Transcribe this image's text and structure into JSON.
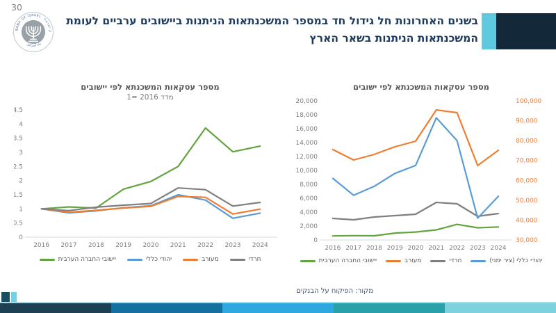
{
  "page": {
    "number": "30"
  },
  "logo": {
    "ring_text_en": "BANK OF ISRAEL",
    "ring_text_he": "בנק ישראל",
    "ring_text_ar": "بنك إسرائيل"
  },
  "header": {
    "title_lines": [
      "בשנים האחרונות חל גידול חד במספר המשכנתאות הניתנות ביישובים ערביים לעומת",
      "המשכנתאות הניתנות בשאר הארץ"
    ],
    "text_color": "#1c3a5e",
    "accent_cyan": "#5fc9df",
    "accent_navy": "#13293a"
  },
  "source_note": "מקור: הפיקוח על הבנקים",
  "footer": {
    "divider_color": "#a8d9e8",
    "corner_squares": [
      "#17505f",
      "#70d2e2"
    ],
    "strip_colors": [
      "#1d4053",
      "#14719f",
      "#2ea9e0",
      "#2aa0ab",
      "#7dd2de"
    ]
  },
  "chart_data": [
    {
      "type": "line",
      "title": "מספר עסקאות המשכנתא לפי יישובים",
      "subtitle": "מדד 2016 =1",
      "categories": [
        2016,
        2017,
        2018,
        2019,
        2020,
        2021,
        2022,
        2023,
        2024
      ],
      "xlabel": "",
      "ylabel": "",
      "ylim": [
        0,
        4.5
      ],
      "ytick_step": 0.5,
      "grid": false,
      "legend_position": "bottom",
      "series": [
        {
          "name": "יישובי החברה הערבית",
          "color": "#63a43f",
          "values": [
            1,
            1.07,
            1.03,
            1.7,
            1.97,
            2.5,
            3.86,
            3.02,
            3.22
          ]
        },
        {
          "name": "יהודי כללי",
          "color": "#5b9bd5",
          "values": [
            1,
            0.86,
            0.93,
            1.04,
            1.11,
            1.5,
            1.31,
            0.67,
            0.85
          ]
        },
        {
          "name": "מעורב",
          "color": "#ed7d31",
          "values": [
            1,
            0.88,
            0.95,
            1.03,
            1.09,
            1.44,
            1.41,
            0.82,
            0.99
          ]
        },
        {
          "name": "חרדי",
          "color": "#7f7f7f",
          "values": [
            1,
            0.94,
            1.06,
            1.13,
            1.19,
            1.74,
            1.68,
            1.1,
            1.23
          ]
        }
      ]
    },
    {
      "type": "line",
      "title": "מספר עסקאות המשכנתא לפי ישובים",
      "categories": [
        2016,
        2017,
        2018,
        2019,
        2020,
        2021,
        2022,
        2023,
        2024
      ],
      "xlabel": "",
      "ylabel": "",
      "left_ylim": [
        0,
        20000
      ],
      "left_ytick_step": 2000,
      "right_ylim": [
        30000,
        100000
      ],
      "right_ytick_step": 10000,
      "right_axis_color": "#ed7d31",
      "grid": false,
      "legend_position": "bottom",
      "series": [
        {
          "name": "יישובי החברה הערבית",
          "color": "#63a43f",
          "axis": "left",
          "values": [
            580,
            620,
            600,
            990,
            1140,
            1450,
            2240,
            1750,
            1870
          ]
        },
        {
          "name": "מעורב",
          "color": "#ed7d31",
          "axis": "left",
          "values": [
            13000,
            11500,
            12300,
            13400,
            14200,
            18700,
            18300,
            10700,
            12900
          ]
        },
        {
          "name": "חרדי",
          "color": "#7f7f7f",
          "axis": "left",
          "values": [
            3100,
            2900,
            3300,
            3500,
            3700,
            5400,
            5200,
            3400,
            3800
          ]
        },
        {
          "name": "יהודי כללי (ציר ימני)",
          "color": "#5b9bd5",
          "axis": "right",
          "values": [
            61000,
            52500,
            57000,
            63500,
            67500,
            91500,
            80000,
            41000,
            52000
          ]
        }
      ]
    }
  ]
}
